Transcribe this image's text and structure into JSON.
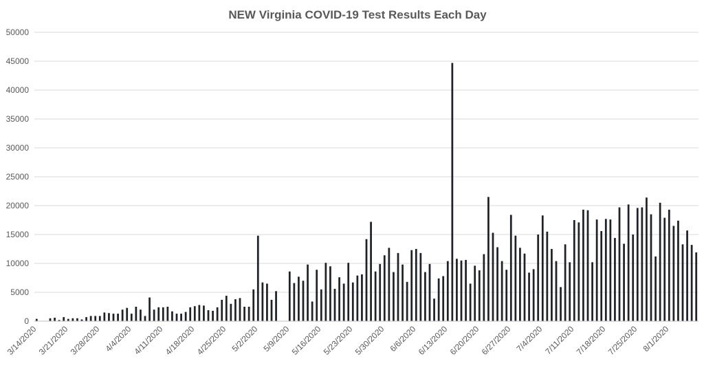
{
  "chart_data": {
    "type": "bar",
    "title": "NEW Virginia COVID-19 Test Results Each Day",
    "xlabel": "",
    "ylabel": "",
    "ylim": [
      0,
      50000
    ],
    "yticks": [
      0,
      5000,
      10000,
      15000,
      20000,
      25000,
      30000,
      35000,
      40000,
      45000,
      50000
    ],
    "grid": true,
    "x_tick_labels": [
      "3/14/2020",
      "3/21/2020",
      "3/28/2020",
      "4/4/2020",
      "4/11/2020",
      "4/18/2020",
      "4/25/2020",
      "5/2/2020",
      "5/9/2020",
      "5/16/2020",
      "5/23/2020",
      "5/30/2020",
      "6/6/2020",
      "6/13/2020",
      "6/20/2020",
      "6/27/2020",
      "7/4/2020",
      "7/11/2020",
      "7/18/2020",
      "7/25/2020",
      "8/1/2020"
    ],
    "start_date": "3/14/2020",
    "values": [
      400,
      0,
      0,
      500,
      600,
      200,
      700,
      400,
      500,
      500,
      300,
      700,
      900,
      900,
      900,
      1500,
      1400,
      1300,
      1300,
      2000,
      2300,
      1300,
      2500,
      2000,
      900,
      4100,
      2000,
      2400,
      2400,
      2500,
      1700,
      1300,
      1300,
      1600,
      2400,
      2600,
      2800,
      2700,
      1900,
      1800,
      2400,
      3700,
      4400,
      3000,
      3800,
      4000,
      2500,
      2500,
      5500,
      14800,
      6700,
      6500,
      3700,
      5200,
      0,
      0,
      8600,
      6600,
      7700,
      7000,
      9800,
      3400,
      8900,
      5500,
      10100,
      9500,
      5600,
      7600,
      6500,
      10100,
      6700,
      7900,
      8100,
      14200,
      17200,
      8600,
      9900,
      11400,
      12700,
      8500,
      11800,
      9800,
      6800,
      12300,
      12500,
      11800,
      8500,
      9900,
      3900,
      7400,
      7800,
      10400,
      44700,
      10800,
      10500,
      10600,
      6500,
      9600,
      8800,
      11600,
      21500,
      15300,
      12800,
      10400,
      8900,
      18400,
      14800,
      12700,
      11700,
      8400,
      9000,
      15000,
      18300,
      15500,
      12500,
      10400,
      5900,
      13300,
      10200,
      17500,
      17100,
      19300,
      19200,
      10200,
      17600,
      15600,
      17700,
      17600,
      14400,
      19700,
      13400,
      20200,
      15000,
      19600,
      19700,
      21400,
      18500,
      11200,
      20500,
      17900,
      19300,
      16500,
      17400,
      13300,
      15700,
      13200,
      11900
    ]
  }
}
